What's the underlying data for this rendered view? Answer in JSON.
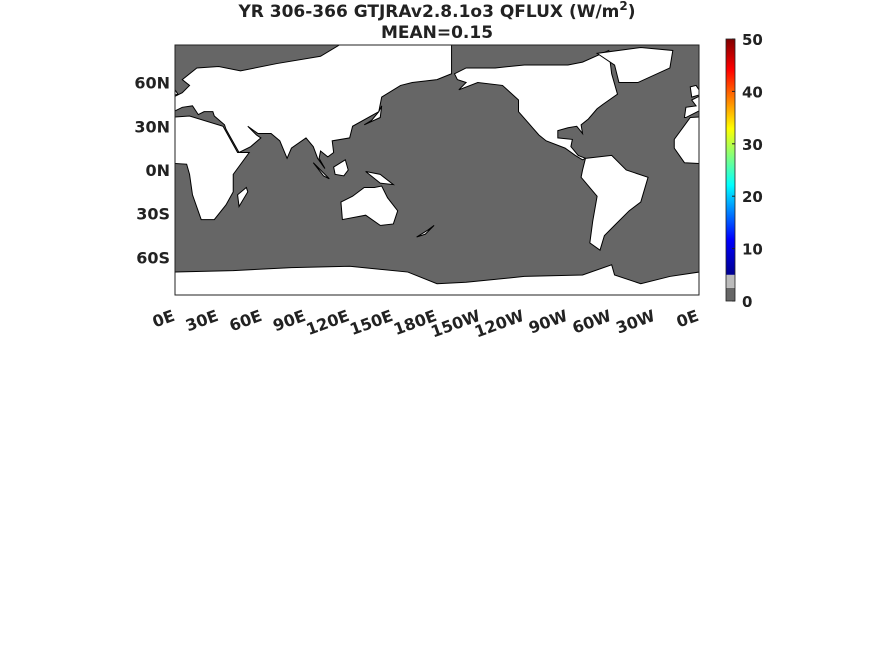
{
  "title": {
    "text": "YR 306-366 GTJRAv2.8.1o3 QFLUX (W/m",
    "superscript": "2",
    "tail": ")"
  },
  "subtitle": "MEAN=0.15",
  "map": {
    "xticks": [
      "0E",
      "30E",
      "60E",
      "90E",
      "120E",
      "150E",
      "180E",
      "150W",
      "120W",
      "90W",
      "60W",
      "30W",
      "0E"
    ],
    "yticks": [
      "60N",
      "30N",
      "0N",
      "30S",
      "60S"
    ]
  },
  "colorbar": {
    "lim": [
      0,
      50
    ],
    "ticks": [
      0,
      10,
      20,
      30,
      40,
      50
    ]
  }
}
